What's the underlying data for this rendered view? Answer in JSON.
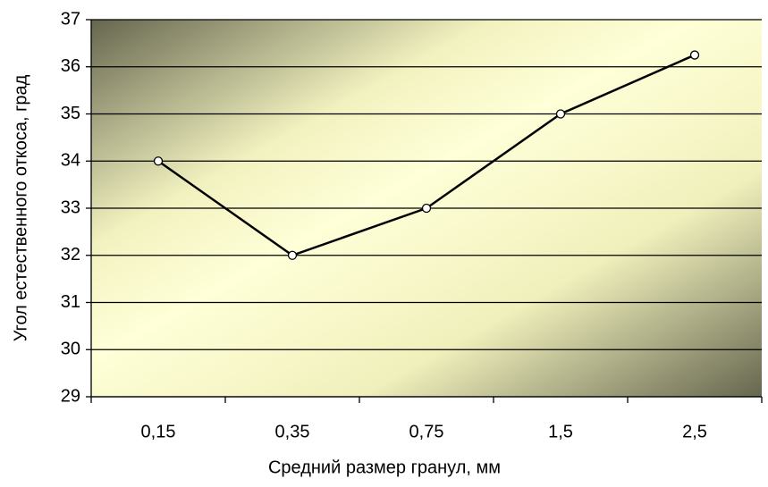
{
  "chart_data": {
    "type": "line",
    "x_label": "Средний размер гранул, мм",
    "y_label": "Угол естественного откоса, град",
    "categories": [
      "0,15",
      "0,35",
      "0,75",
      "1,5",
      "2,5"
    ],
    "values": [
      34,
      32,
      33,
      35,
      36.25
    ],
    "color": "#000000",
    "ylim": [
      29,
      37
    ],
    "yticks": [
      29,
      30,
      31,
      32,
      33,
      34,
      35,
      36,
      37
    ],
    "grid": true
  }
}
